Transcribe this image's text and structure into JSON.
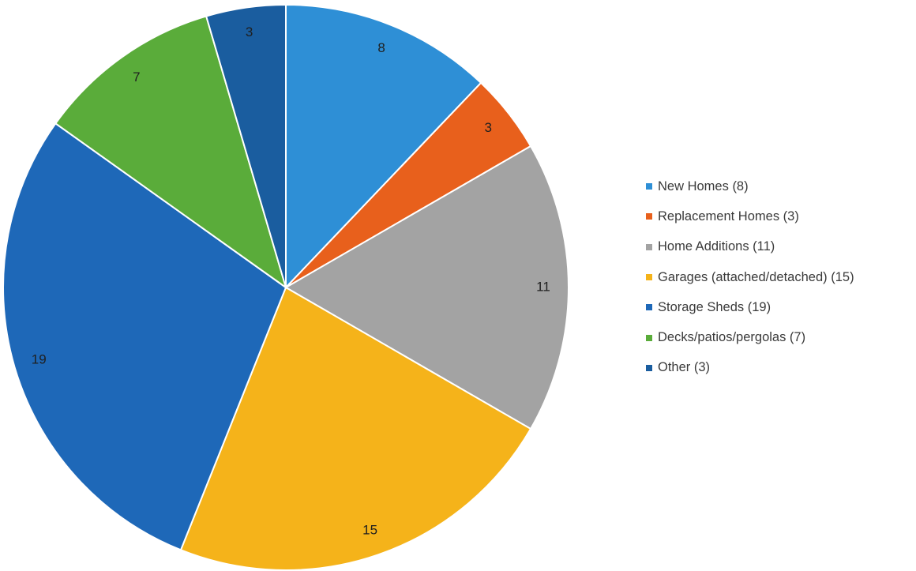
{
  "chart_data": {
    "type": "pie",
    "title": "",
    "start_angle_deg": 0,
    "direction": "clockwise",
    "slice_border_color": "#ffffff",
    "legend_position": "right",
    "slices": [
      {
        "name": "New Homes (8)",
        "value": 8,
        "label": "8",
        "color": "#2e8fd6"
      },
      {
        "name": "Replacement Homes (3)",
        "value": 3,
        "label": "3",
        "color": "#e8601c"
      },
      {
        "name": "Home Additions (11)",
        "value": 11,
        "label": "11",
        "color": "#a3a3a3"
      },
      {
        "name": "Garages (attached/detached) (15)",
        "value": 15,
        "label": "15",
        "color": "#f5b31a"
      },
      {
        "name": "Storage Sheds (19)",
        "value": 19,
        "label": "19",
        "color": "#1e68b8"
      },
      {
        "name": "Decks/patios/pergolas (7)",
        "value": 7,
        "label": "7",
        "color": "#5aac3a"
      },
      {
        "name": "Other (3)",
        "value": 3,
        "label": "3",
        "color": "#1a5d9f"
      }
    ]
  }
}
